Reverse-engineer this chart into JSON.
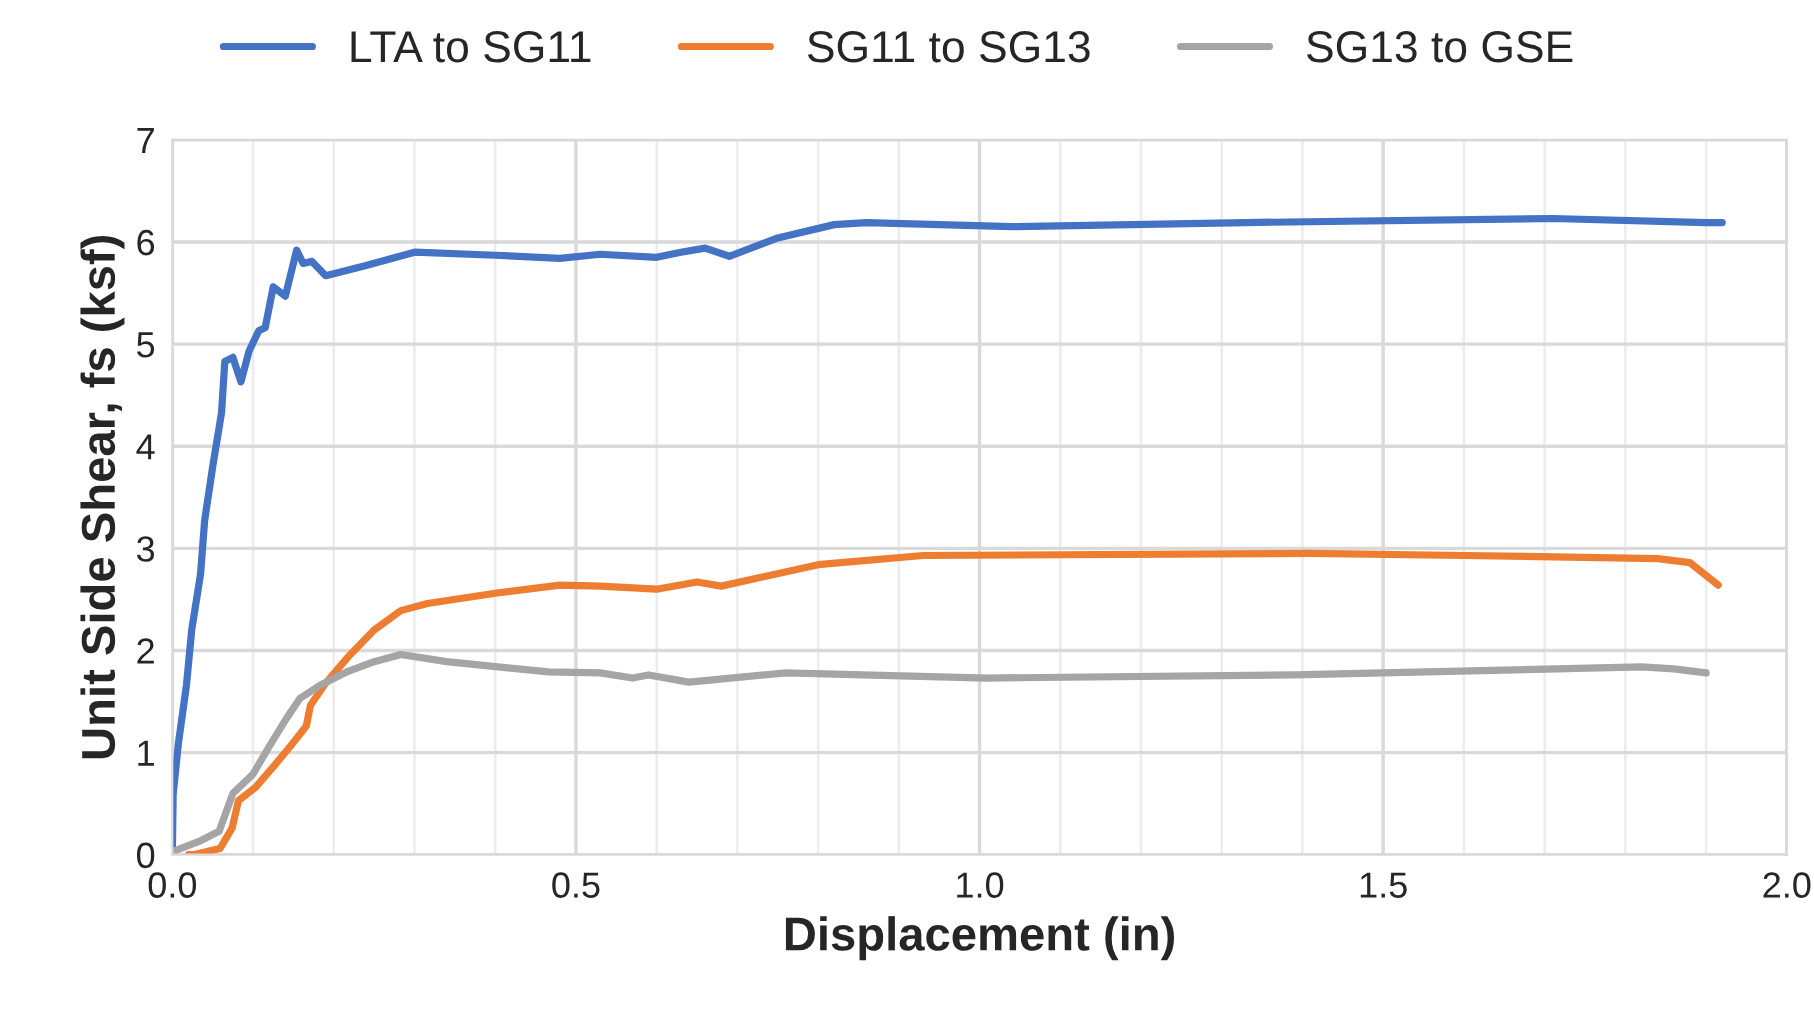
{
  "chart_data": {
    "type": "line",
    "xlabel": "Displacement (in)",
    "ylabel": "Unit Side Shear, fs (ksf)",
    "xlim": [
      0,
      2.0
    ],
    "ylim": [
      0,
      7
    ],
    "xticks": [
      {
        "value": 0,
        "label": "0.0"
      },
      {
        "value": 0.5,
        "label": "0.5"
      },
      {
        "value": 1.0,
        "label": "1.0"
      },
      {
        "value": 1.5,
        "label": "1.5"
      },
      {
        "value": 2.0,
        "label": "2.0"
      }
    ],
    "yticks": [
      0,
      1,
      2,
      3,
      4,
      5,
      6,
      7
    ],
    "grid": true,
    "legend": "top",
    "marker": "none",
    "line_style": "solid",
    "series": [
      {
        "name": "LTA to SG11",
        "color": "#4472c4",
        "x": [
          0,
          0.001,
          0.0075,
          0.0175,
          0.024,
          0.035,
          0.04,
          0.05,
          0.061,
          0.065,
          0.075,
          0.085,
          0.095,
          0.107,
          0.115,
          0.125,
          0.14,
          0.154,
          0.162,
          0.173,
          0.19,
          0.24,
          0.3,
          0.4,
          0.48,
          0.53,
          0.6,
          0.63,
          0.66,
          0.69,
          0.75,
          0.82,
          0.86,
          1.04,
          1.33,
          1.71,
          1.9,
          1.92
        ],
        "values": [
          0,
          0.59,
          1.09,
          1.66,
          2.2,
          2.75,
          3.27,
          3.8,
          4.33,
          4.83,
          4.87,
          4.63,
          4.93,
          5.13,
          5.16,
          5.56,
          5.47,
          5.92,
          5.79,
          5.81,
          5.67,
          5.77,
          5.9,
          5.87,
          5.84,
          5.88,
          5.85,
          5.9,
          5.94,
          5.86,
          6.04,
          6.17,
          6.19,
          6.15,
          6.19,
          6.23,
          6.19,
          6.19
        ]
      },
      {
        "name": "SG11 to SG13",
        "color": "#ed7d31",
        "x": [
          0.02,
          0.026,
          0.059,
          0.074,
          0.082,
          0.103,
          0.125,
          0.146,
          0.166,
          0.171,
          0.188,
          0.217,
          0.25,
          0.283,
          0.316,
          0.4,
          0.48,
          0.53,
          0.6,
          0.65,
          0.68,
          0.8,
          0.93,
          1.41,
          1.6,
          1.84,
          1.88,
          1.915
        ],
        "values": [
          0,
          0,
          0.06,
          0.26,
          0.53,
          0.66,
          0.86,
          1.06,
          1.26,
          1.46,
          1.66,
          1.93,
          2.2,
          2.39,
          2.46,
          2.56,
          2.64,
          2.63,
          2.6,
          2.67,
          2.63,
          2.84,
          2.93,
          2.95,
          2.93,
          2.9,
          2.86,
          2.64
        ]
      },
      {
        "name": "SG13 to GSE",
        "color": "#a5a5a5",
        "x": [
          0,
          0.033,
          0.058,
          0.075,
          0.1,
          0.12,
          0.141,
          0.158,
          0.183,
          0.216,
          0.25,
          0.283,
          0.34,
          0.466,
          0.53,
          0.57,
          0.59,
          0.64,
          0.76,
          1.01,
          1.39,
          1.82,
          1.86,
          1.9
        ],
        "values": [
          0.03,
          0.13,
          0.23,
          0.6,
          0.79,
          1.06,
          1.33,
          1.53,
          1.66,
          1.79,
          1.89,
          1.96,
          1.89,
          1.79,
          1.78,
          1.73,
          1.76,
          1.69,
          1.78,
          1.73,
          1.76,
          1.84,
          1.82,
          1.78
        ]
      }
    ]
  }
}
